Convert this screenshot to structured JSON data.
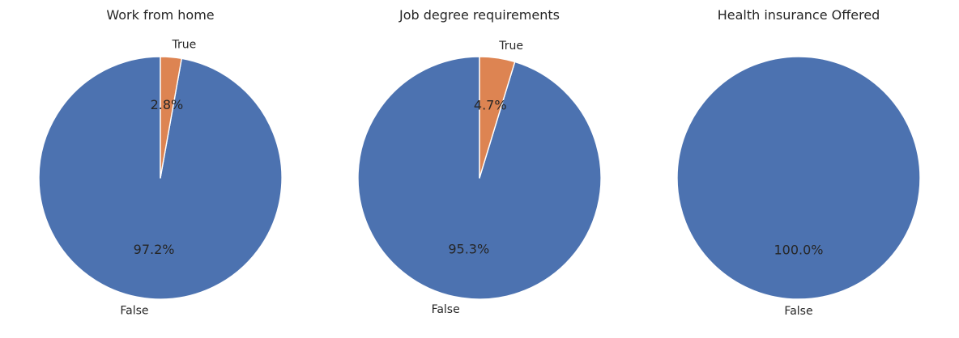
{
  "colors": {
    "false": "#4c72b0",
    "true": "#dd8452"
  },
  "chart_data": [
    {
      "type": "pie",
      "title": "Work from home",
      "slices": [
        {
          "label": "False",
          "value": 97.2,
          "pct_label": "97.2%",
          "color": "#4c72b0"
        },
        {
          "label": "True",
          "value": 2.8,
          "pct_label": "2.8%",
          "color": "#dd8452"
        }
      ]
    },
    {
      "type": "pie",
      "title": "Job degree requirements",
      "slices": [
        {
          "label": "False",
          "value": 95.3,
          "pct_label": "95.3%",
          "color": "#4c72b0"
        },
        {
          "label": "True",
          "value": 4.7,
          "pct_label": "4.7%",
          "color": "#dd8452"
        }
      ]
    },
    {
      "type": "pie",
      "title": "Health insurance Offered",
      "slices": [
        {
          "label": "False",
          "value": 100.0,
          "pct_label": "100.0%",
          "color": "#4c72b0"
        }
      ]
    }
  ]
}
